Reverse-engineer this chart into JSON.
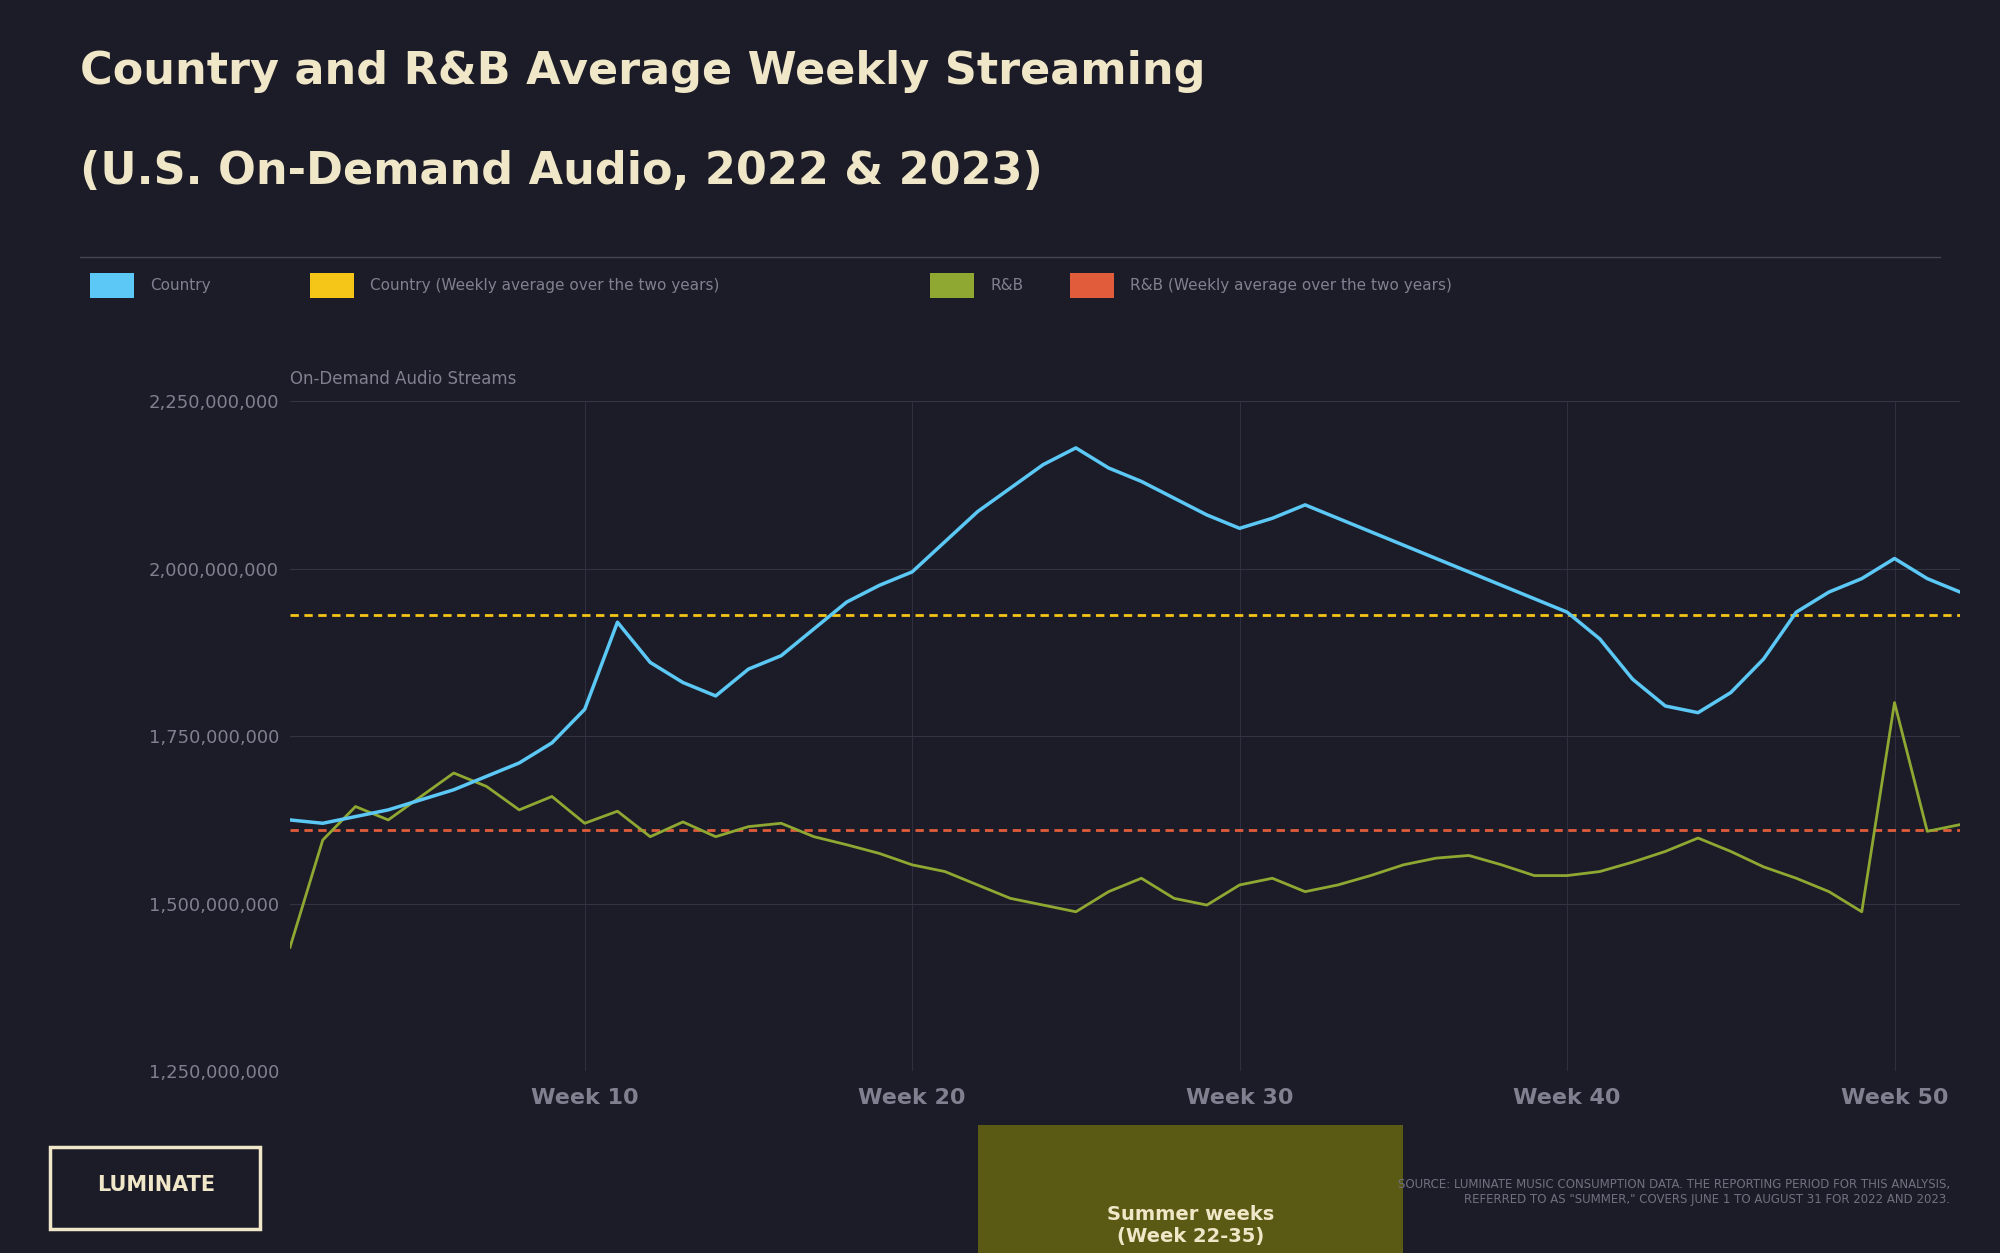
{
  "title_line1": "Country and R&B Average Weekly Streaming",
  "title_line2": "(U.S. On-Demand Audio, 2022 & 2023)",
  "ylabel": "On-Demand Audio Streams",
  "bg_color": "#1c1c28",
  "plot_bg_color": "#1c1c28",
  "footer_bg_color": "#0d2233",
  "title_color": "#f0e6c8",
  "text_color": "#808090",
  "grid_color": "#333344",
  "country_color": "#5bc8f5",
  "country_avg_color": "#f5c518",
  "rnb_color": "#8fa832",
  "rnb_avg_color": "#e05c3a",
  "summer_box_color": "#5a5a14",
  "summer_text_color": "#f0e6c8",
  "ylim_min": 1250000000,
  "ylim_max": 2250000000,
  "yticks": [
    1250000000,
    1500000000,
    1750000000,
    2000000000,
    2250000000
  ],
  "xtick_labels": [
    "Week 10",
    "Week 20",
    "Week 30",
    "Week 40",
    "Week 50"
  ],
  "xtick_positions": [
    10,
    20,
    30,
    40,
    50
  ],
  "summer_week_start": 22,
  "summer_week_end": 35,
  "country_avg": 1930000000,
  "rnb_avg": 1610000000,
  "source_text": "SOURCE: LUMINATE MUSIC CONSUMPTION DATA. THE REPORTING PERIOD FOR THIS ANALYSIS,\nREFERRED TO AS \"SUMMER,\" COVERS JUNE 1 TO AUGUST 31 FOR 2022 AND 2023.",
  "country_data": [
    1625000000,
    1620000000,
    1630000000,
    1640000000,
    1655000000,
    1670000000,
    1690000000,
    1710000000,
    1740000000,
    1790000000,
    1920000000,
    1860000000,
    1830000000,
    1810000000,
    1850000000,
    1870000000,
    1910000000,
    1950000000,
    1975000000,
    1995000000,
    2040000000,
    2085000000,
    2120000000,
    2155000000,
    2180000000,
    2150000000,
    2130000000,
    2105000000,
    2080000000,
    2060000000,
    2075000000,
    2095000000,
    2075000000,
    2055000000,
    2035000000,
    2015000000,
    1995000000,
    1975000000,
    1955000000,
    1935000000,
    1895000000,
    1835000000,
    1795000000,
    1785000000,
    1815000000,
    1865000000,
    1935000000,
    1965000000,
    1985000000,
    2015000000,
    1985000000,
    1965000000
  ],
  "rnb_data": [
    1435000000,
    1595000000,
    1645000000,
    1625000000,
    1660000000,
    1695000000,
    1675000000,
    1640000000,
    1660000000,
    1620000000,
    1638000000,
    1600000000,
    1622000000,
    1600000000,
    1615000000,
    1620000000,
    1600000000,
    1588000000,
    1575000000,
    1558000000,
    1548000000,
    1528000000,
    1508000000,
    1498000000,
    1488000000,
    1518000000,
    1538000000,
    1508000000,
    1498000000,
    1528000000,
    1538000000,
    1518000000,
    1528000000,
    1542000000,
    1558000000,
    1568000000,
    1572000000,
    1558000000,
    1542000000,
    1542000000,
    1548000000,
    1562000000,
    1578000000,
    1598000000,
    1578000000,
    1555000000,
    1538000000,
    1518000000,
    1488000000,
    1800000000,
    1608000000,
    1618000000
  ]
}
